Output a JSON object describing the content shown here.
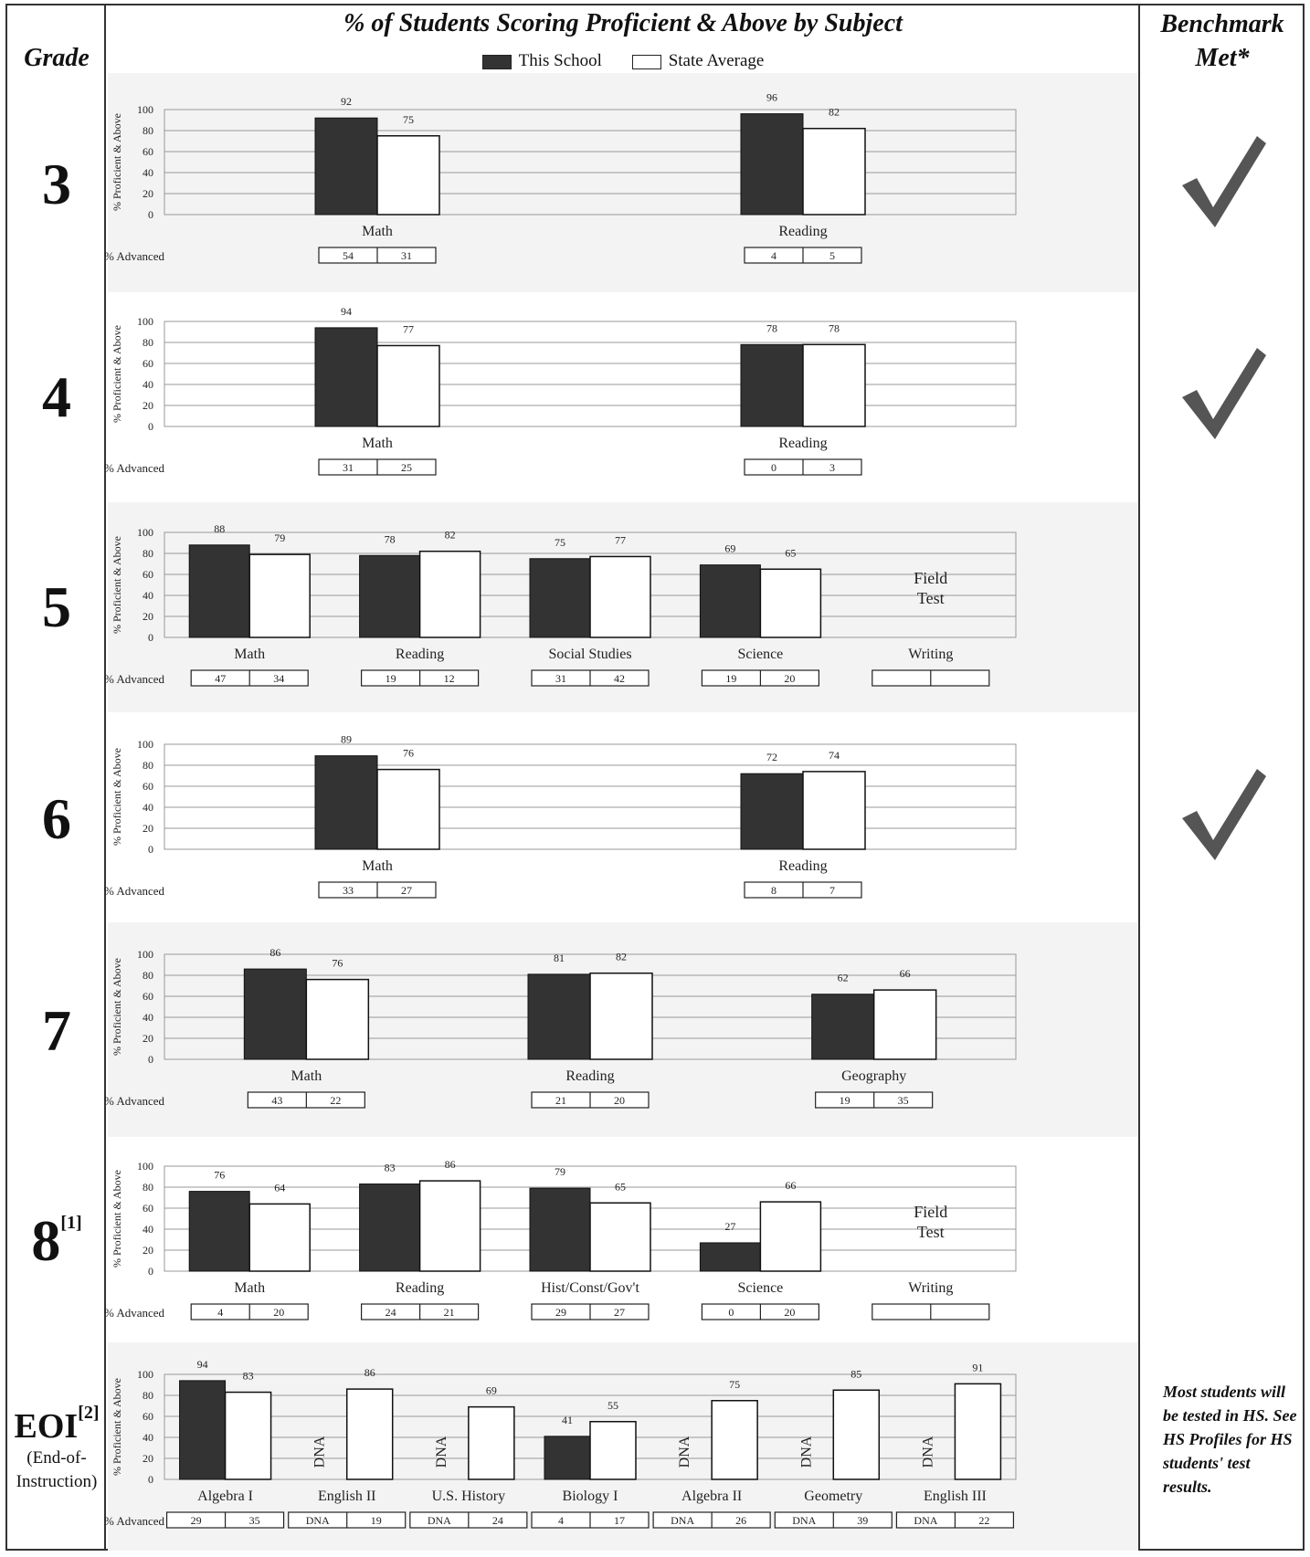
{
  "header": {
    "grade": "Grade",
    "title": "% of Students Scoring Proficient & Above by Subject",
    "benchmark": "Benchmark Met*",
    "legend_school": "This School",
    "legend_state": "State Average"
  },
  "colors": {
    "school": "#333333",
    "state": "#ffffff",
    "check": "#555555",
    "band": "#f3f3f3"
  },
  "advanced_label": "% Advanced",
  "ylabel": "% Proficient & Above",
  "yticks": [
    "100",
    "80",
    "60",
    "40",
    "20",
    "0"
  ],
  "footnote": "Most students will be tested in HS.  See HS Profiles for HS students' test results.",
  "eoi": {
    "main": "EOI",
    "sup": "[2]",
    "sub1": "(End-of-",
    "sub2": "Instruction)"
  },
  "chart_data": [
    {
      "type": "bar",
      "grade": "3",
      "benchmark_met": true,
      "ylabel": "% Proficient & Above",
      "ylim": [
        0,
        100
      ],
      "categories": [
        "Math",
        "Reading"
      ],
      "series": [
        {
          "name": "This School",
          "values": [
            92,
            96
          ]
        },
        {
          "name": "State Average",
          "values": [
            75,
            82
          ]
        }
      ],
      "advanced": [
        [
          "54",
          "31"
        ],
        [
          "4",
          "5"
        ]
      ]
    },
    {
      "type": "bar",
      "grade": "4",
      "benchmark_met": true,
      "ylabel": "% Proficient & Above",
      "ylim": [
        0,
        100
      ],
      "categories": [
        "Math",
        "Reading"
      ],
      "series": [
        {
          "name": "This School",
          "values": [
            94,
            78
          ]
        },
        {
          "name": "State Average",
          "values": [
            77,
            78
          ]
        }
      ],
      "advanced": [
        [
          "31",
          "25"
        ],
        [
          "0",
          "3"
        ]
      ]
    },
    {
      "type": "bar",
      "grade": "5",
      "benchmark_met": false,
      "ylabel": "% Proficient & Above",
      "ylim": [
        0,
        100
      ],
      "categories": [
        "Math",
        "Reading",
        "Social Studies",
        "Science",
        "Writing"
      ],
      "series": [
        {
          "name": "This School",
          "values": [
            88,
            78,
            75,
            69,
            null
          ]
        },
        {
          "name": "State Average",
          "values": [
            79,
            82,
            77,
            65,
            null
          ]
        }
      ],
      "advanced": [
        [
          "47",
          "34"
        ],
        [
          "19",
          "12"
        ],
        [
          "31",
          "42"
        ],
        [
          "19",
          "20"
        ],
        [
          "",
          ""
        ]
      ],
      "field_test": {
        "index": 4,
        "text": "Field Test"
      }
    },
    {
      "type": "bar",
      "grade": "6",
      "benchmark_met": true,
      "ylabel": "% Proficient & Above",
      "ylim": [
        0,
        100
      ],
      "categories": [
        "Math",
        "Reading"
      ],
      "series": [
        {
          "name": "This School",
          "values": [
            89,
            72
          ]
        },
        {
          "name": "State Average",
          "values": [
            76,
            74
          ]
        }
      ],
      "advanced": [
        [
          "33",
          "27"
        ],
        [
          "8",
          "7"
        ]
      ]
    },
    {
      "type": "bar",
      "grade": "7",
      "benchmark_met": false,
      "ylabel": "% Proficient & Above",
      "ylim": [
        0,
        100
      ],
      "categories": [
        "Math",
        "Reading",
        "Geography"
      ],
      "series": [
        {
          "name": "This School",
          "values": [
            86,
            81,
            62
          ]
        },
        {
          "name": "State Average",
          "values": [
            76,
            82,
            66
          ]
        }
      ],
      "advanced": [
        [
          "43",
          "22"
        ],
        [
          "21",
          "20"
        ],
        [
          "19",
          "35"
        ]
      ]
    },
    {
      "type": "bar",
      "grade": "8",
      "grade_sup": "[1]",
      "benchmark_met": false,
      "ylabel": "% Proficient & Above",
      "ylim": [
        0,
        100
      ],
      "categories": [
        "Math",
        "Reading",
        "Hist/Const/Gov't",
        "Science",
        "Writing"
      ],
      "series": [
        {
          "name": "This School",
          "values": [
            76,
            83,
            79,
            27,
            null
          ]
        },
        {
          "name": "State Average",
          "values": [
            64,
            86,
            65,
            66,
            null
          ]
        }
      ],
      "advanced": [
        [
          "4",
          "20"
        ],
        [
          "24",
          "21"
        ],
        [
          "29",
          "27"
        ],
        [
          "0",
          "20"
        ],
        [
          "",
          ""
        ]
      ],
      "field_test": {
        "index": 4,
        "text": "Field Test"
      }
    },
    {
      "type": "bar",
      "grade": "EOI",
      "benchmark_met": false,
      "ylabel": "% Proficient & Above",
      "ylim": [
        0,
        100
      ],
      "categories": [
        "Algebra I",
        "English II",
        "U.S. History",
        "Biology I",
        "Algebra II",
        "Geometry",
        "English III"
      ],
      "series": [
        {
          "name": "This School",
          "values": [
            94,
            "DNA",
            "DNA",
            41,
            "DNA",
            "DNA",
            "DNA"
          ]
        },
        {
          "name": "State Average",
          "values": [
            83,
            86,
            69,
            55,
            75,
            85,
            91
          ]
        }
      ],
      "advanced": [
        [
          "29",
          "35"
        ],
        [
          "DNA",
          "19"
        ],
        [
          "DNA",
          "24"
        ],
        [
          "4",
          "17"
        ],
        [
          "DNA",
          "26"
        ],
        [
          "DNA",
          "39"
        ],
        [
          "DNA",
          "22"
        ]
      ]
    }
  ]
}
